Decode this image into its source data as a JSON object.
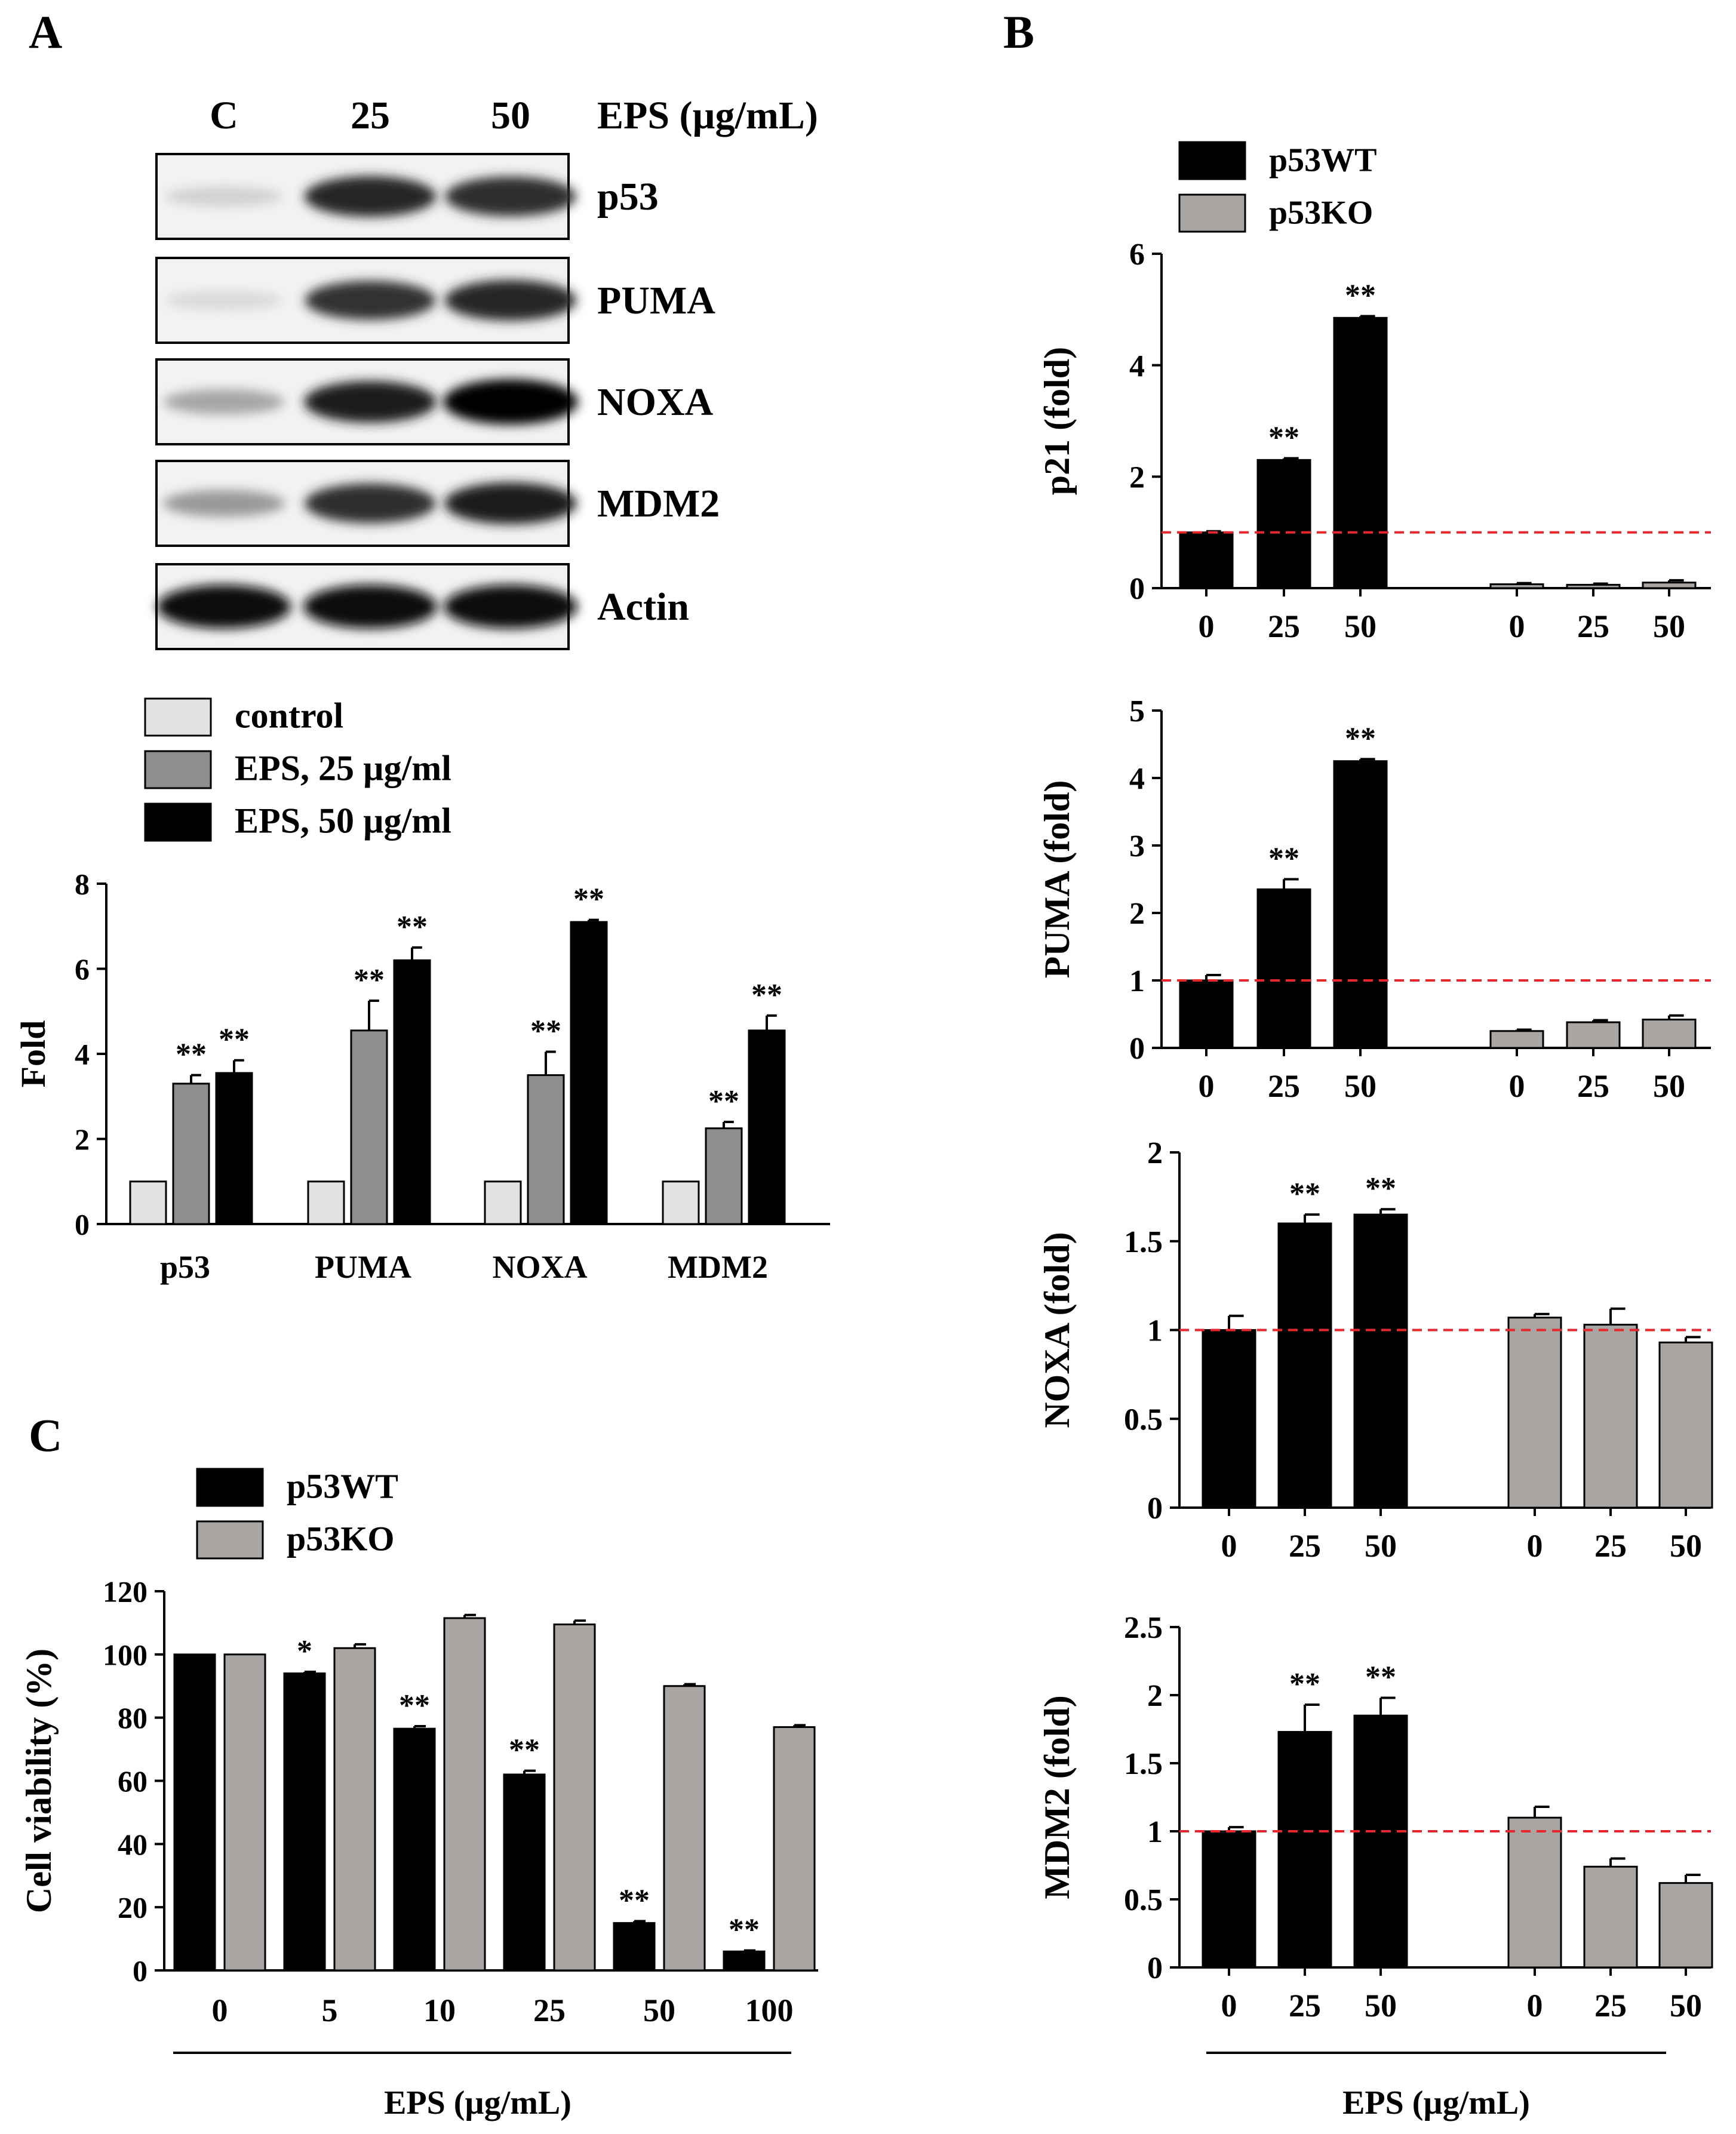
{
  "colors": {
    "black_bar": "#000000",
    "grey_bar": "#a9a5a2",
    "mid_grey_bar": "#8e8e8e",
    "light_grey_bar": "#e2e2e2",
    "reference_line": "#e8262b"
  },
  "panel_a": {
    "letter": "A",
    "blot": {
      "lanes": [
        "C",
        "25",
        "50"
      ],
      "condition_label": "EPS (µg/mL)",
      "proteins": [
        "p53",
        "PUMA",
        "NOXA",
        "MDM2",
        "Actin"
      ],
      "band_intensity": [
        [
          0.18,
          0.85,
          0.82
        ],
        [
          0.15,
          0.8,
          0.85
        ],
        [
          0.35,
          0.88,
          1.0
        ],
        [
          0.4,
          0.82,
          0.88
        ],
        [
          0.95,
          0.95,
          0.95
        ]
      ]
    }
  },
  "panel_b": {
    "letter": "B",
    "xlabel": "EPS (µg/mL)"
  },
  "panel_c": {
    "letter": "C"
  },
  "chart_data": [
    {
      "id": "A-quant",
      "type": "bar",
      "title": "",
      "xlabel": "",
      "ylabel": "Fold",
      "ylim": [
        0,
        8
      ],
      "yticks": [
        "0",
        "2",
        "4",
        "6",
        "8"
      ],
      "categories": [
        "p53",
        "PUMA",
        "NOXA",
        "MDM2"
      ],
      "legend": [
        "control",
        "EPS, 25 µg/ml",
        "EPS, 50 µg/ml"
      ],
      "legend_position": "top-left",
      "series": [
        {
          "name": "control",
          "values": [
            1,
            1,
            1,
            1
          ],
          "errors": [
            0,
            0,
            0,
            0
          ],
          "sig": [
            "",
            "",
            "",
            ""
          ]
        },
        {
          "name": "EPS, 25 µg/ml",
          "values": [
            3.3,
            4.55,
            3.5,
            2.25
          ],
          "errors": [
            0.2,
            0.7,
            0.55,
            0.15
          ],
          "sig": [
            "**",
            "**",
            "**",
            "**"
          ]
        },
        {
          "name": "EPS, 50 µg/ml",
          "values": [
            3.55,
            6.2,
            7.1,
            4.55
          ],
          "errors": [
            0.3,
            0.3,
            0.05,
            0.35
          ],
          "sig": [
            "**",
            "**",
            "**",
            "**"
          ]
        }
      ]
    },
    {
      "id": "B-p21",
      "type": "bar",
      "xlabel": "",
      "ylabel": "p21 (fold)",
      "ylim": [
        0,
        6
      ],
      "yticks": [
        "0",
        "2",
        "4",
        "6"
      ],
      "legend": [
        "p53WT",
        "p53KO"
      ],
      "legend_position": "top",
      "reference_line": 1,
      "groups": [
        {
          "name": "p53WT",
          "categories": [
            "0",
            "25",
            "50"
          ],
          "values": [
            1.0,
            2.3,
            4.85
          ],
          "errors": [
            0.02,
            0.03,
            0.03
          ],
          "sig": [
            "",
            "**",
            "**"
          ]
        },
        {
          "name": "p53KO",
          "categories": [
            "0",
            "25",
            "50"
          ],
          "values": [
            0.07,
            0.06,
            0.1
          ],
          "errors": [
            0.02,
            0.02,
            0.04
          ],
          "sig": [
            "",
            "",
            ""
          ]
        }
      ]
    },
    {
      "id": "B-PUMA",
      "type": "bar",
      "ylabel": "PUMA (fold)",
      "ylim": [
        0,
        5
      ],
      "yticks": [
        "0",
        "1",
        "2",
        "3",
        "4",
        "5"
      ],
      "reference_line": 1,
      "groups": [
        {
          "name": "p53WT",
          "categories": [
            "0",
            "25",
            "50"
          ],
          "values": [
            1.0,
            2.35,
            4.25
          ],
          "errors": [
            0.08,
            0.15,
            0.03
          ],
          "sig": [
            "",
            "**",
            "**"
          ]
        },
        {
          "name": "p53KO",
          "categories": [
            "0",
            "25",
            "50"
          ],
          "values": [
            0.25,
            0.38,
            0.42
          ],
          "errors": [
            0.02,
            0.03,
            0.06
          ],
          "sig": [
            "",
            "",
            ""
          ]
        }
      ]
    },
    {
      "id": "B-NOXA",
      "type": "bar",
      "ylabel": "NOXA (fold)",
      "ylim": [
        0,
        2
      ],
      "yticks": [
        "0",
        "0.5",
        "1",
        "1.5",
        "2"
      ],
      "reference_line": 1,
      "groups": [
        {
          "name": "p53WT",
          "categories": [
            "0",
            "25",
            "50"
          ],
          "values": [
            1.0,
            1.6,
            1.65
          ],
          "errors": [
            0.08,
            0.05,
            0.03
          ],
          "sig": [
            "",
            "**",
            "**"
          ]
        },
        {
          "name": "p53KO",
          "categories": [
            "0",
            "25",
            "50"
          ],
          "values": [
            1.07,
            1.03,
            0.93
          ],
          "errors": [
            0.02,
            0.09,
            0.03
          ],
          "sig": [
            "",
            "",
            ""
          ]
        }
      ]
    },
    {
      "id": "B-MDM2",
      "type": "bar",
      "ylabel": "MDM2 (fold)",
      "ylim": [
        0,
        2.5
      ],
      "yticks": [
        "0",
        "0.5",
        "1",
        "1.5",
        "2",
        "2.5"
      ],
      "reference_line": 1,
      "groups": [
        {
          "name": "p53WT",
          "categories": [
            "0",
            "25",
            "50"
          ],
          "values": [
            1.0,
            1.73,
            1.85
          ],
          "errors": [
            0.03,
            0.2,
            0.13
          ],
          "sig": [
            "",
            "**",
            "**"
          ]
        },
        {
          "name": "p53KO",
          "categories": [
            "0",
            "25",
            "50"
          ],
          "values": [
            1.1,
            0.74,
            0.62
          ],
          "errors": [
            0.08,
            0.06,
            0.06
          ],
          "sig": [
            "",
            "",
            ""
          ]
        }
      ]
    },
    {
      "id": "C-viability",
      "type": "bar",
      "xlabel": "EPS (µg/mL)",
      "ylabel": "Cell viability  (%)",
      "ylim": [
        0,
        120
      ],
      "yticks": [
        "0",
        "20",
        "40",
        "60",
        "80",
        "100",
        "120"
      ],
      "categories": [
        "0",
        "5",
        "10",
        "25",
        "50",
        "100"
      ],
      "legend": [
        "p53WT",
        "p53KO"
      ],
      "legend_position": "top-left",
      "series": [
        {
          "name": "p53WT",
          "values": [
            100,
            94,
            76.5,
            62,
            15,
            6
          ],
          "errors": [
            0,
            0.5,
            0.8,
            1.2,
            0.6,
            0.3
          ],
          "sig": [
            "",
            "*",
            "**",
            "**",
            "**",
            "**"
          ]
        },
        {
          "name": "p53KO",
          "values": [
            100,
            102,
            111.5,
            109.5,
            90,
            77
          ],
          "errors": [
            0,
            1.2,
            1.0,
            1.2,
            0.6,
            0.6
          ],
          "sig": [
            "",
            "",
            "",
            "",
            "",
            ""
          ]
        }
      ]
    }
  ]
}
